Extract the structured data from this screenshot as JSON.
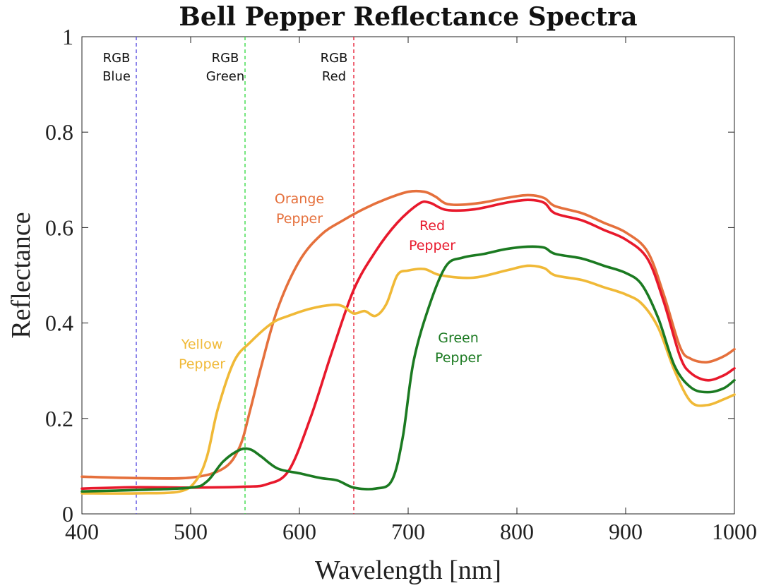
{
  "chart_data": {
    "type": "line",
    "title": "Bell Pepper Reflectance Spectra",
    "xlabel": "Wavelength [nm]",
    "ylabel": "Reflectance",
    "xlim": [
      400,
      1000
    ],
    "ylim": [
      0,
      1
    ],
    "xticks": [
      400,
      500,
      600,
      700,
      800,
      900,
      1000
    ],
    "xtick_labels": [
      "400",
      "500",
      "600",
      "700",
      "800",
      "900",
      "1000"
    ],
    "yticks": [
      0,
      0.2,
      0.4,
      0.6,
      0.8,
      1
    ],
    "ytick_labels": [
      "0",
      "0.2",
      "0.4",
      "0.6",
      "0.8",
      "1"
    ],
    "grid": false,
    "legend": "none",
    "reference_lines": [
      {
        "x": 450,
        "label_line1": "RGB",
        "label_line2": "Blue",
        "color": "#5b4fe0"
      },
      {
        "x": 550,
        "label_line1": "RGB",
        "label_line2": "Green",
        "color": "#3ddc4a"
      },
      {
        "x": 650,
        "label_line1": "RGB",
        "label_line2": "Red",
        "color": "#e8263c"
      }
    ],
    "series": [
      {
        "name": "Orange Pepper",
        "label_line1": "Orange",
        "label_line2": "Pepper",
        "color": "#e5703c",
        "x": [
          400,
          450,
          500,
          530,
          545,
          555,
          565,
          580,
          600,
          620,
          640,
          660,
          680,
          700,
          715,
          725,
          735,
          750,
          770,
          790,
          810,
          825,
          835,
          860,
          880,
          900,
          920,
          935,
          950,
          960,
          975,
          990,
          1000
        ],
        "y": [
          0.078,
          0.075,
          0.076,
          0.095,
          0.14,
          0.22,
          0.31,
          0.43,
          0.53,
          0.585,
          0.615,
          0.64,
          0.66,
          0.675,
          0.675,
          0.665,
          0.65,
          0.648,
          0.653,
          0.662,
          0.668,
          0.662,
          0.645,
          0.63,
          0.61,
          0.59,
          0.55,
          0.46,
          0.35,
          0.325,
          0.318,
          0.33,
          0.345
        ]
      },
      {
        "name": "Red Pepper",
        "label_line1": "Red",
        "label_line2": "Pepper",
        "color": "#e8192c",
        "x": [
          400,
          450,
          500,
          550,
          570,
          590,
          610,
          630,
          650,
          670,
          690,
          710,
          720,
          735,
          760,
          790,
          810,
          825,
          835,
          860,
          880,
          900,
          920,
          935,
          950,
          960,
          975,
          990,
          1000
        ],
        "y": [
          0.053,
          0.056,
          0.055,
          0.057,
          0.062,
          0.09,
          0.2,
          0.34,
          0.47,
          0.55,
          0.61,
          0.65,
          0.652,
          0.637,
          0.638,
          0.652,
          0.658,
          0.652,
          0.63,
          0.615,
          0.595,
          0.575,
          0.535,
          0.445,
          0.33,
          0.295,
          0.28,
          0.29,
          0.305
        ]
      },
      {
        "name": "Yellow Pepper",
        "label_line1": "Yellow",
        "label_line2": "Pepper",
        "color": "#f0b937",
        "x": [
          400,
          450,
          490,
          505,
          515,
          525,
          540,
          555,
          575,
          590,
          610,
          630,
          640,
          650,
          660,
          670,
          680,
          690,
          700,
          715,
          730,
          760,
          790,
          810,
          825,
          835,
          860,
          880,
          900,
          915,
          930,
          945,
          960,
          975,
          990,
          1000
        ],
        "y": [
          0.043,
          0.043,
          0.047,
          0.07,
          0.12,
          0.22,
          0.32,
          0.36,
          0.4,
          0.415,
          0.43,
          0.438,
          0.435,
          0.42,
          0.425,
          0.415,
          0.44,
          0.5,
          0.51,
          0.513,
          0.5,
          0.495,
          0.51,
          0.52,
          0.515,
          0.5,
          0.49,
          0.475,
          0.46,
          0.44,
          0.39,
          0.3,
          0.235,
          0.228,
          0.24,
          0.25
        ]
      },
      {
        "name": "Green Pepper",
        "label_line1": "Green",
        "label_line2": "Pepper",
        "color": "#1b7a21",
        "x": [
          400,
          450,
          500,
          515,
          530,
          545,
          555,
          565,
          580,
          600,
          620,
          635,
          650,
          670,
          685,
          695,
          705,
          720,
          735,
          750,
          770,
          790,
          810,
          825,
          835,
          860,
          880,
          900,
          915,
          930,
          945,
          960,
          975,
          990,
          1000
        ],
        "y": [
          0.047,
          0.05,
          0.055,
          0.068,
          0.11,
          0.134,
          0.135,
          0.12,
          0.095,
          0.085,
          0.075,
          0.07,
          0.055,
          0.053,
          0.07,
          0.16,
          0.32,
          0.44,
          0.52,
          0.537,
          0.545,
          0.555,
          0.56,
          0.558,
          0.545,
          0.535,
          0.52,
          0.505,
          0.48,
          0.41,
          0.31,
          0.265,
          0.255,
          0.263,
          0.28
        ]
      }
    ]
  }
}
